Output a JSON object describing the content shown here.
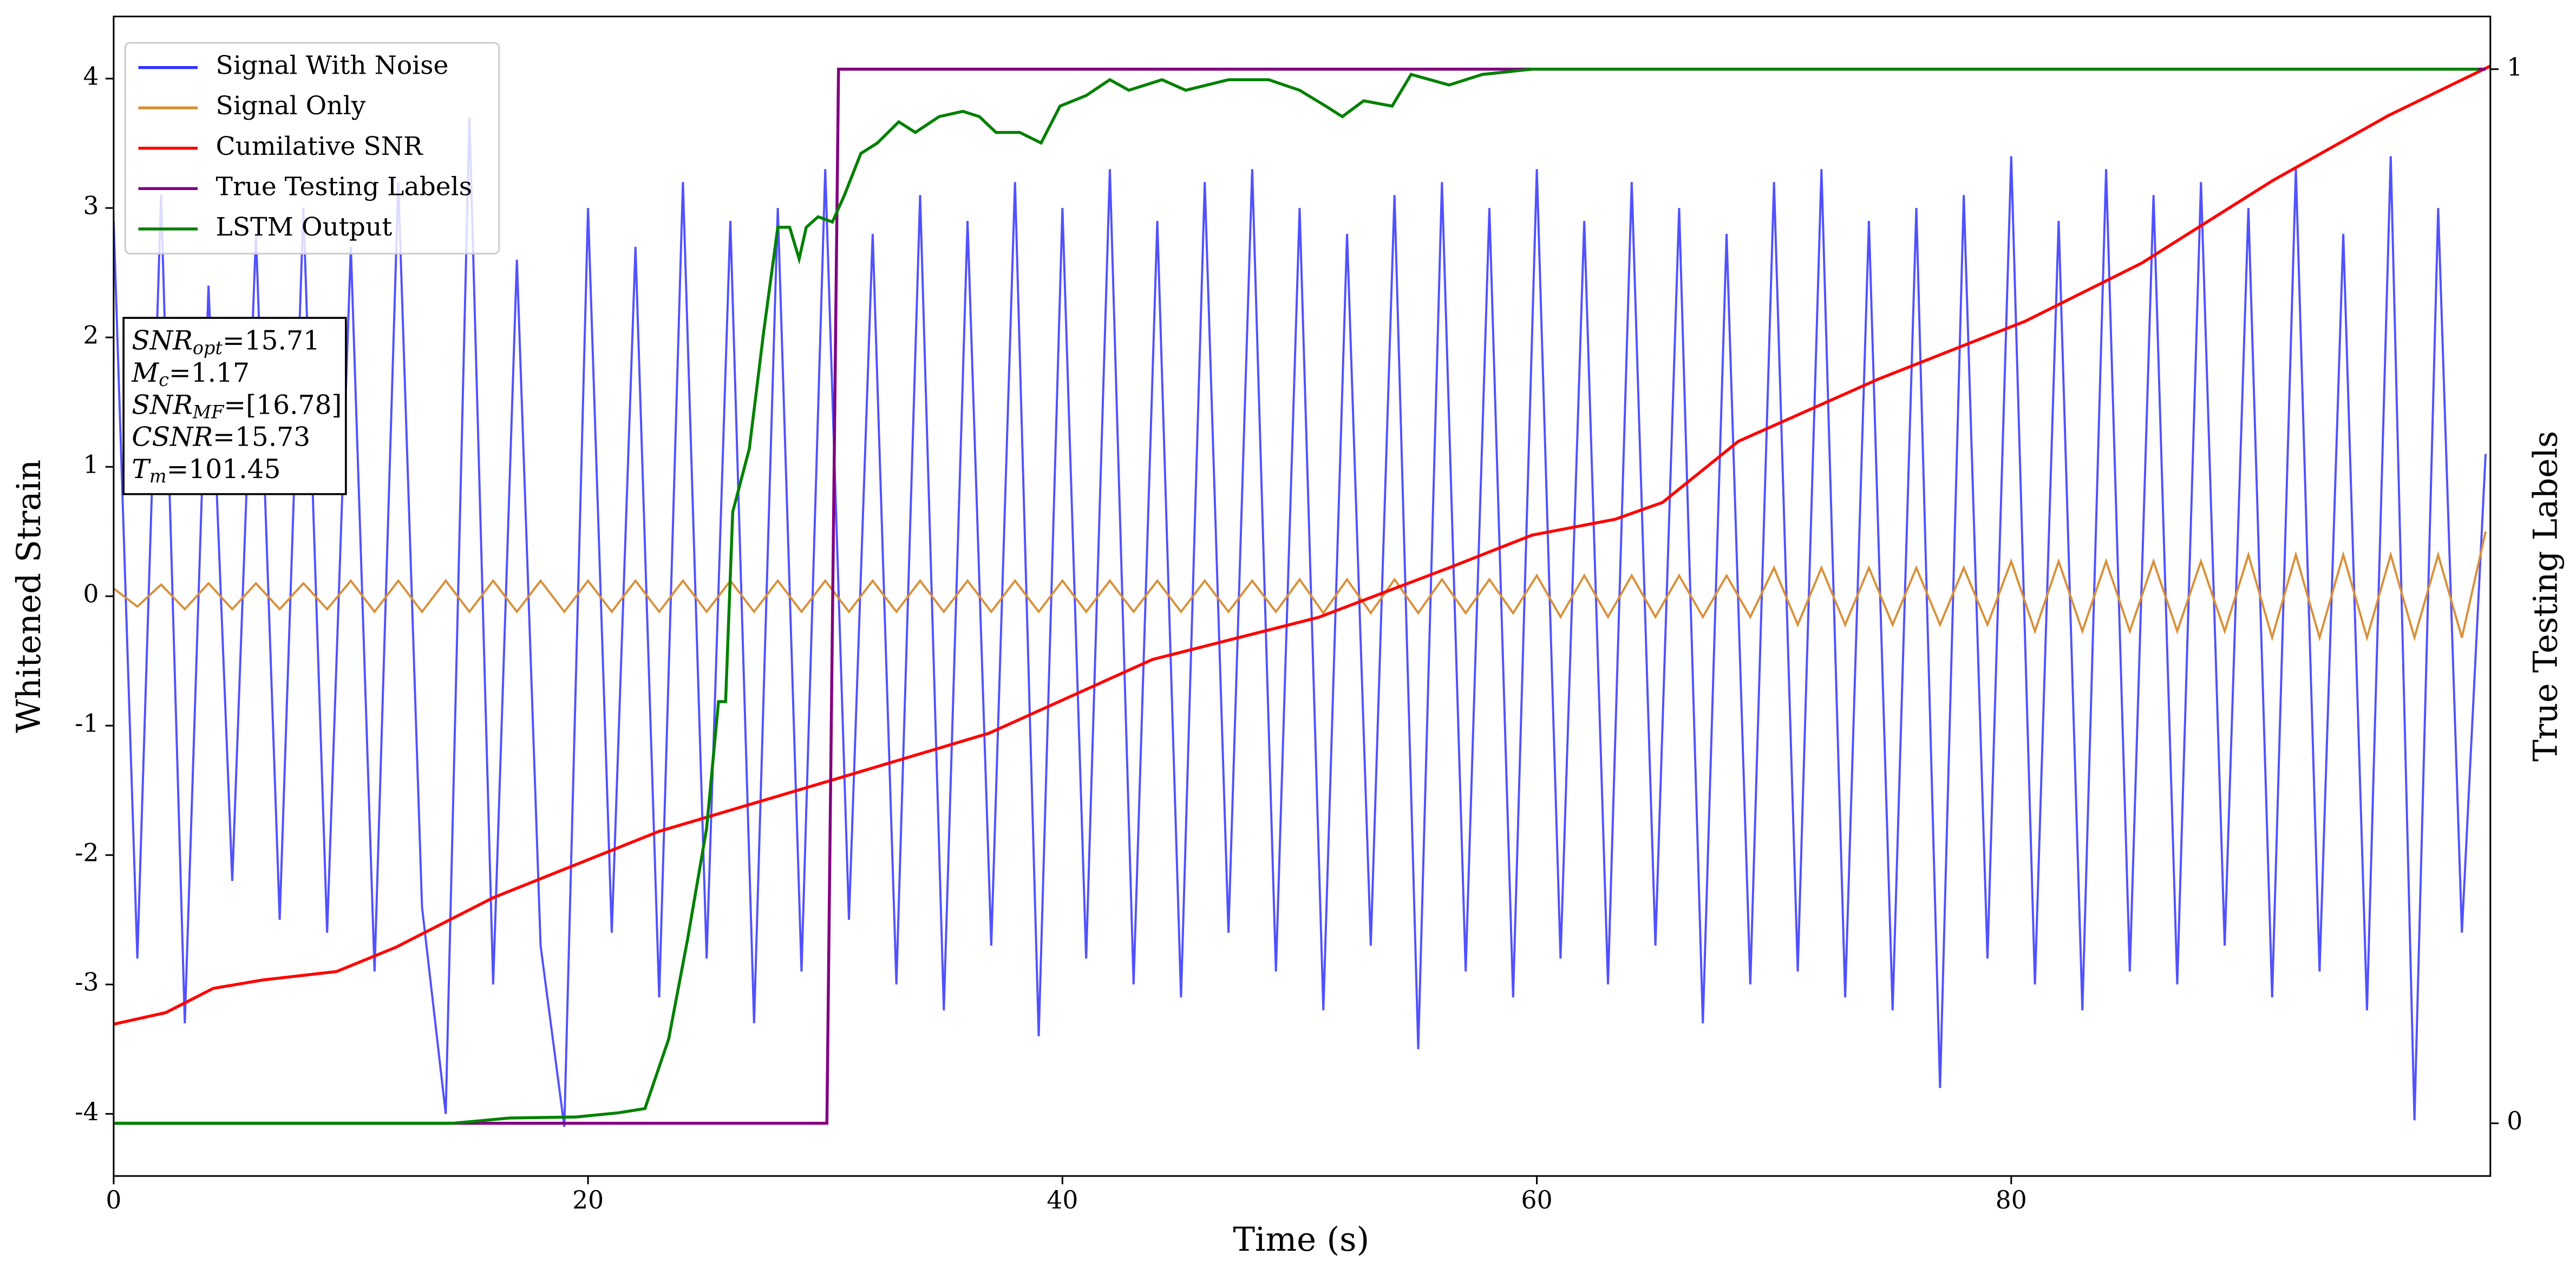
{
  "chart_data": {
    "type": "line",
    "xlabel": "Time (s)",
    "ylabel": "Whitened Strain",
    "y2label": "True Testing Labels",
    "xlim": [
      0,
      100.2
    ],
    "xticks": [
      0,
      20,
      40,
      60,
      80
    ],
    "ylim": [
      -4.48,
      4.48
    ],
    "yticks": [
      -4,
      -3,
      -2,
      -1,
      0,
      1,
      2,
      3,
      4
    ],
    "y2lim": [
      -0.05,
      1.05
    ],
    "y2ticks": [
      0,
      1
    ],
    "legend": "upper left",
    "annotation": [
      {
        "name": "SNR",
        "sub": "opt",
        "text": "=15.71"
      },
      {
        "name": "M",
        "sub": "c",
        "text": "=1.17"
      },
      {
        "name": "SNR",
        "sub": "MF",
        "text": "=[16.78]"
      },
      {
        "name": "CSNR",
        "text": "=15.73"
      },
      {
        "name": "T",
        "sub": "m",
        "text": "=101.45"
      }
    ],
    "x": [
      0,
      1,
      2,
      3,
      4,
      5,
      6,
      7,
      8,
      9,
      10,
      11,
      12,
      13,
      14,
      15,
      16,
      17,
      18,
      19,
      20,
      21,
      22,
      23,
      24,
      25,
      26,
      27,
      28,
      29,
      30,
      31,
      32,
      33,
      34,
      35,
      36,
      37,
      38,
      39,
      40,
      41,
      42,
      43,
      44,
      45,
      46,
      47,
      48,
      49,
      50,
      51,
      52,
      53,
      54,
      55,
      56,
      57,
      58,
      59,
      60,
      61,
      62,
      63,
      64,
      65,
      66,
      67,
      68,
      69,
      70,
      71,
      72,
      73,
      74,
      75,
      76,
      77,
      78,
      79,
      80,
      81,
      82,
      83,
      84,
      85,
      86,
      87,
      88,
      89,
      90,
      91,
      92,
      93,
      94,
      95,
      96,
      97,
      98,
      99,
      100
    ],
    "series": [
      {
        "name": "Signal With Noise",
        "color": "#3333ff",
        "axis": "y",
        "values": [
          2.9,
          -2.8,
          3.1,
          -3.3,
          2.4,
          -2.2,
          2.8,
          -2.5,
          3.0,
          -2.6,
          2.7,
          -2.9,
          3.2,
          -2.4,
          -4.0,
          3.7,
          -3.0,
          2.6,
          -2.7,
          -4.1,
          3.0,
          -2.6,
          2.7,
          -3.1,
          3.2,
          -2.8,
          2.9,
          -3.3,
          3.0,
          -2.9,
          3.3,
          -2.5,
          2.8,
          -3.0,
          3.1,
          -3.2,
          2.9,
          -2.7,
          3.2,
          -3.4,
          3.0,
          -2.8,
          3.3,
          -3.0,
          2.9,
          -3.1,
          3.2,
          -2.6,
          3.3,
          -2.9,
          3.0,
          -3.2,
          2.8,
          -2.7,
          3.1,
          -3.5,
          3.2,
          -2.9,
          3.0,
          -3.1,
          3.3,
          -2.8,
          2.9,
          -3.0,
          3.2,
          -2.7,
          3.0,
          -3.3,
          2.8,
          -3.0,
          3.2,
          -2.9,
          3.3,
          -3.1,
          2.9,
          -3.2,
          3.0,
          -3.8,
          3.1,
          -2.8,
          3.4,
          -3.0,
          2.9,
          -3.2,
          3.3,
          -2.9,
          3.1,
          -3.0,
          3.2,
          -2.7,
          3.0,
          -3.1,
          3.3,
          -2.9,
          2.8,
          -3.2,
          3.4,
          -4.05,
          3.0,
          -2.6,
          1.1
        ]
      },
      {
        "name": "Signal Only",
        "color": "#d8903a",
        "axis": "y",
        "values": [
          0.06,
          -0.08,
          0.09,
          -0.1,
          0.1,
          -0.1,
          0.1,
          -0.1,
          0.1,
          -0.1,
          0.12,
          -0.12,
          0.12,
          -0.12,
          0.12,
          -0.12,
          0.12,
          -0.12,
          0.12,
          -0.12,
          0.12,
          -0.12,
          0.12,
          -0.12,
          0.12,
          -0.12,
          0.12,
          -0.12,
          0.12,
          -0.12,
          0.12,
          -0.12,
          0.12,
          -0.12,
          0.12,
          -0.12,
          0.12,
          -0.12,
          0.12,
          -0.12,
          0.12,
          -0.12,
          0.12,
          -0.12,
          0.12,
          -0.12,
          0.12,
          -0.12,
          0.12,
          -0.12,
          0.13,
          -0.13,
          0.13,
          -0.13,
          0.13,
          -0.13,
          0.13,
          -0.13,
          0.13,
          -0.13,
          0.16,
          -0.16,
          0.16,
          -0.16,
          0.16,
          -0.16,
          0.16,
          -0.16,
          0.16,
          -0.16,
          0.22,
          -0.22,
          0.22,
          -0.22,
          0.22,
          -0.22,
          0.22,
          -0.22,
          0.22,
          -0.22,
          0.27,
          -0.27,
          0.27,
          -0.27,
          0.27,
          -0.27,
          0.27,
          -0.27,
          0.27,
          -0.27,
          0.32,
          -0.32,
          0.32,
          -0.32,
          0.32,
          -0.32,
          0.32,
          -0.32,
          0.32,
          -0.32,
          0.5
        ]
      },
      {
        "name": "Cumilative SNR",
        "color": "#ff0000",
        "axis": "y2",
        "x": [
          0,
          2.2,
          4.2,
          6.3,
          9.4,
          11.9,
          16,
          23,
          29.9,
          36.9,
          43.8,
          50.8,
          56.3,
          59.8,
          63.3,
          65.3,
          68.5,
          74.4,
          80.6,
          85.5,
          91,
          95.9,
          100.2
        ],
        "values": [
          0.094,
          0.105,
          0.128,
          0.136,
          0.144,
          0.167,
          0.214,
          0.277,
          0.323,
          0.37,
          0.44,
          0.48,
          0.527,
          0.558,
          0.573,
          0.589,
          0.647,
          0.706,
          0.761,
          0.816,
          0.894,
          0.956,
          1.003
        ]
      },
      {
        "name": "True Testing Labels",
        "color": "#800080",
        "axis": "y2",
        "x": [
          0,
          30.07,
          30.56,
          100
        ],
        "values": [
          0,
          0,
          1,
          1
        ]
      },
      {
        "name": "LSTM Output",
        "color": "#008000",
        "axis": "y2",
        "x": [
          0,
          14.3,
          16.7,
          19.5,
          21.3,
          22.4,
          23.4,
          24.2,
          25,
          25.5,
          25.8,
          26.1,
          26.8,
          27.4,
          28,
          28.5,
          28.9,
          29.2,
          29.7,
          30.3,
          30.8,
          31.5,
          32.2,
          33.1,
          33.8,
          34.8,
          35.8,
          36.5,
          37.2,
          38.2,
          39.1,
          39.9,
          41,
          42,
          42.8,
          44.2,
          45.2,
          47,
          48.7,
          50,
          51.1,
          51.8,
          52.7,
          53.9,
          54.7,
          56.3,
          57.7,
          59.8,
          61.9,
          64.7,
          68.8,
          99.7
        ],
        "values": [
          0,
          0,
          0.005,
          0.006,
          0.01,
          0.014,
          0.08,
          0.175,
          0.28,
          0.4,
          0.4,
          0.58,
          0.64,
          0.75,
          0.85,
          0.85,
          0.82,
          0.85,
          0.86,
          0.855,
          0.88,
          0.92,
          0.93,
          0.95,
          0.94,
          0.955,
          0.96,
          0.955,
          0.94,
          0.94,
          0.93,
          0.965,
          0.975,
          0.99,
          0.98,
          0.99,
          0.98,
          0.99,
          0.99,
          0.98,
          0.965,
          0.955,
          0.97,
          0.965,
          0.995,
          0.985,
          0.995,
          1.0,
          1.0,
          1.0,
          1.0,
          1.0
        ]
      }
    ]
  }
}
